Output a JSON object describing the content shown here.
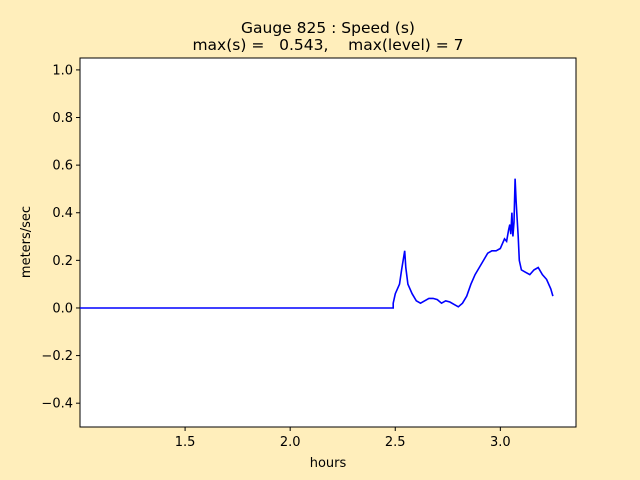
{
  "chart_data": {
    "type": "line",
    "title": "Gauge 825 : Speed (s)",
    "subtitle": "max(s) =   0.543,    max(level) = 7",
    "xlabel": "hours",
    "ylabel": "meters/sec",
    "xlim": [
      1.0,
      3.36
    ],
    "ylim": [
      -0.5,
      1.05
    ],
    "xticks": [
      1.5,
      2.0,
      2.5,
      3.0
    ],
    "xtick_labels": [
      "1.5",
      "2.0",
      "2.5",
      "3.0"
    ],
    "yticks": [
      -0.4,
      -0.2,
      0.0,
      0.2,
      0.4,
      0.6,
      0.8,
      1.0
    ],
    "ytick_labels": [
      "−0.4",
      "−0.2",
      "0.0",
      "0.2",
      "0.4",
      "0.6",
      "0.8",
      "1.0"
    ],
    "grid": false,
    "line_color": "#0000ff",
    "series": [
      {
        "x": [
          1.0,
          2.49,
          2.49,
          2.5,
          2.52,
          2.53,
          2.545,
          2.55,
          2.56,
          2.58,
          2.6,
          2.62,
          2.64,
          2.66,
          2.68,
          2.7,
          2.72,
          2.74,
          2.76,
          2.78,
          2.8,
          2.82,
          2.84,
          2.86,
          2.88,
          2.9,
          2.92,
          2.94,
          2.96,
          2.98,
          3.0,
          3.01,
          3.02,
          3.03,
          3.04,
          3.045,
          3.05,
          3.055,
          3.06,
          3.065,
          3.07,
          3.075,
          3.08,
          3.085,
          3.09,
          3.1,
          3.12,
          3.14,
          3.16,
          3.18,
          3.2,
          3.22,
          3.24,
          3.25
        ],
        "y": [
          0.0,
          0.0,
          0.02,
          0.06,
          0.1,
          0.16,
          0.24,
          0.17,
          0.1,
          0.06,
          0.03,
          0.02,
          0.03,
          0.04,
          0.04,
          0.035,
          0.02,
          0.03,
          0.025,
          0.015,
          0.005,
          0.02,
          0.05,
          0.1,
          0.14,
          0.17,
          0.2,
          0.23,
          0.24,
          0.24,
          0.25,
          0.27,
          0.29,
          0.28,
          0.33,
          0.35,
          0.31,
          0.4,
          0.3,
          0.36,
          0.543,
          0.45,
          0.37,
          0.3,
          0.2,
          0.16,
          0.15,
          0.14,
          0.16,
          0.17,
          0.14,
          0.12,
          0.08,
          0.05
        ]
      }
    ]
  }
}
